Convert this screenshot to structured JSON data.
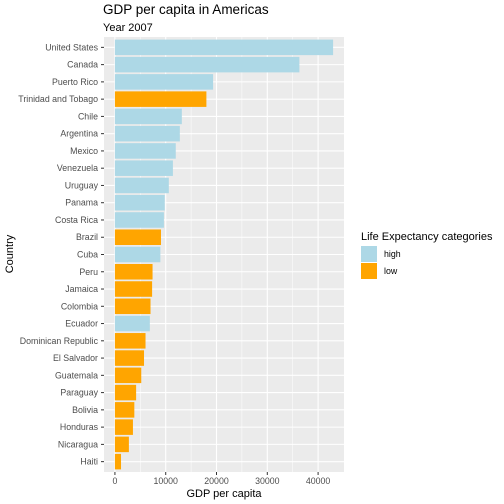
{
  "chart_data": {
    "type": "bar",
    "orientation": "horizontal",
    "title": "GDP per capita in Americas",
    "subtitle": "Year 2007",
    "xlabel": "GDP per capita",
    "ylabel": "Country",
    "xlim": [
      0,
      45000
    ],
    "xticks": [
      0,
      10000,
      20000,
      30000,
      40000
    ],
    "xtick_labels": [
      "0",
      "10000",
      "20000",
      "30000",
      "40000"
    ],
    "grid": true,
    "legend": {
      "title": "Life Expectancy categories",
      "position": "right",
      "entries": [
        {
          "label": "high",
          "color": "#add8e6"
        },
        {
          "label": "low",
          "color": "#ffa500"
        }
      ]
    },
    "bars": [
      {
        "country": "United States",
        "value": 42952,
        "category": "high"
      },
      {
        "country": "Canada",
        "value": 36319,
        "category": "high"
      },
      {
        "country": "Puerto Rico",
        "value": 19329,
        "category": "high"
      },
      {
        "country": "Trinidad and Tobago",
        "value": 18009,
        "category": "low"
      },
      {
        "country": "Chile",
        "value": 13172,
        "category": "high"
      },
      {
        "country": "Argentina",
        "value": 12779,
        "category": "high"
      },
      {
        "country": "Mexico",
        "value": 11978,
        "category": "high"
      },
      {
        "country": "Venezuela",
        "value": 11416,
        "category": "high"
      },
      {
        "country": "Uruguay",
        "value": 10611,
        "category": "high"
      },
      {
        "country": "Panama",
        "value": 9809,
        "category": "high"
      },
      {
        "country": "Costa Rica",
        "value": 9645,
        "category": "high"
      },
      {
        "country": "Brazil",
        "value": 9066,
        "category": "low"
      },
      {
        "country": "Cuba",
        "value": 8948,
        "category": "high"
      },
      {
        "country": "Peru",
        "value": 7409,
        "category": "low"
      },
      {
        "country": "Jamaica",
        "value": 7321,
        "category": "low"
      },
      {
        "country": "Colombia",
        "value": 7007,
        "category": "low"
      },
      {
        "country": "Ecuador",
        "value": 6873,
        "category": "high"
      },
      {
        "country": "Dominican Republic",
        "value": 6025,
        "category": "low"
      },
      {
        "country": "El Salvador",
        "value": 5728,
        "category": "low"
      },
      {
        "country": "Guatemala",
        "value": 5186,
        "category": "low"
      },
      {
        "country": "Paraguay",
        "value": 4173,
        "category": "low"
      },
      {
        "country": "Bolivia",
        "value": 3822,
        "category": "low"
      },
      {
        "country": "Honduras",
        "value": 3548,
        "category": "low"
      },
      {
        "country": "Nicaragua",
        "value": 2749,
        "category": "low"
      },
      {
        "country": "Haiti",
        "value": 1202,
        "category": "low"
      }
    ]
  }
}
